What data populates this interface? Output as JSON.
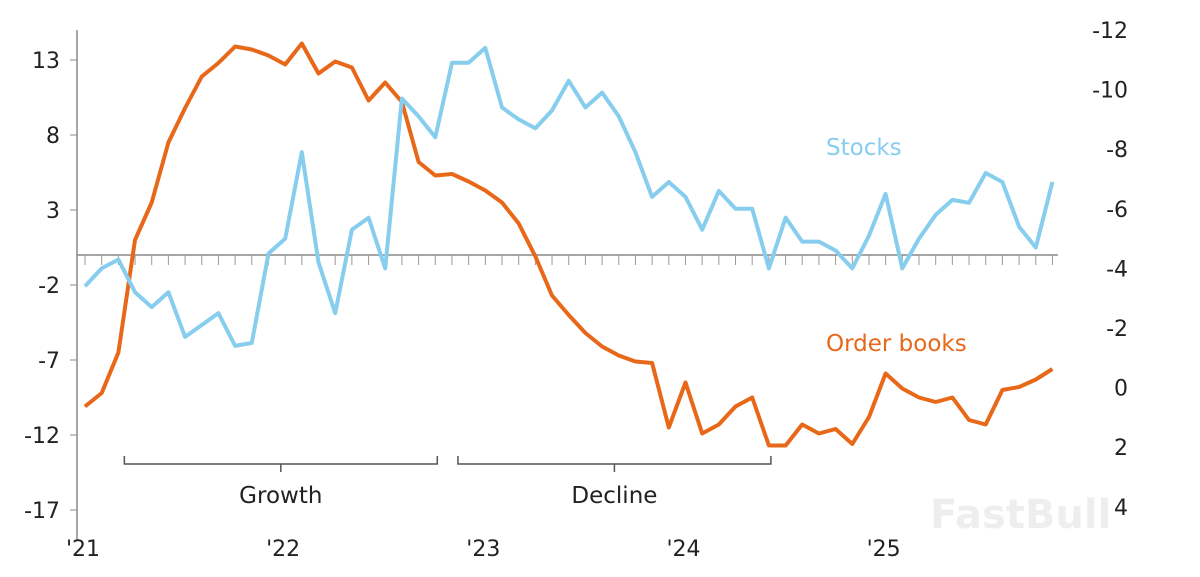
{
  "chart_data": {
    "type": "line",
    "x_tick_labels": [
      "'21",
      "'22",
      "'23",
      "'24",
      "'25"
    ],
    "x_start": "2021-01",
    "x_frequency": "monthly",
    "left_axis": {
      "ticks": [
        13,
        8,
        3,
        -2,
        -7,
        -12,
        -17
      ],
      "range": [
        -17,
        16
      ]
    },
    "right_axis": {
      "ticks": [
        -12,
        -10,
        -8,
        -6,
        -4,
        -2,
        0,
        2,
        4
      ],
      "range": [
        -12,
        4
      ],
      "inverted": true
    },
    "series": [
      {
        "name": "Order books",
        "axis": "left",
        "color": "#e8681a",
        "values": [
          -10.1,
          -9.2,
          -6.5,
          1.0,
          3.5,
          7.5,
          9.8,
          11.9,
          12.8,
          13.9,
          13.7,
          13.3,
          12.7,
          14.1,
          12.1,
          12.9,
          12.5,
          10.3,
          11.5,
          10.2,
          6.2,
          5.3,
          5.4,
          4.9,
          4.3,
          3.5,
          2.1,
          -0.1,
          -2.7,
          -4.0,
          -5.2,
          -6.1,
          -6.7,
          -7.1,
          -7.2,
          -11.5,
          -8.5,
          -11.9,
          -11.3,
          -10.1,
          -9.5,
          -12.7,
          -12.7,
          -11.3,
          -11.9,
          -11.6,
          -12.6,
          -10.8,
          -7.9,
          -8.9,
          -9.5,
          -9.8,
          -9.5,
          -11.0,
          -11.3,
          -9.0,
          -8.8,
          -8.3,
          -7.6
        ]
      },
      {
        "name": "Stocks",
        "axis": "right",
        "color": "#87cdee",
        "values": [
          -3.4,
          -4.0,
          -4.3,
          -3.2,
          -2.7,
          -3.2,
          -1.7,
          -2.1,
          -2.5,
          -1.4,
          -1.5,
          -4.5,
          -5.0,
          -7.9,
          -4.2,
          -2.5,
          -5.3,
          -5.7,
          -4.0,
          -9.7,
          -9.1,
          -8.4,
          -10.9,
          -10.9,
          -11.4,
          -9.4,
          -9.0,
          -8.7,
          -9.3,
          -10.3,
          -9.4,
          -9.9,
          -9.1,
          -7.9,
          -6.4,
          -6.9,
          -6.4,
          -5.3,
          -6.6,
          -6.0,
          -6.0,
          -4.0,
          -5.7,
          -4.9,
          -4.9,
          -4.6,
          -4.0,
          -5.1,
          -6.5,
          -4.0,
          -5.0,
          -5.8,
          -6.3,
          -6.2,
          -7.2,
          -6.9,
          -5.4,
          -4.7,
          -6.9
        ]
      }
    ],
    "annotations": [
      {
        "text": "Growth",
        "from_index": 2,
        "to_index": 21
      },
      {
        "text": "Decline",
        "from_index": 22,
        "to_index": 41
      }
    ],
    "grid": false,
    "zero_line": "dashed with monthly ticks"
  },
  "watermark": "FastBull"
}
